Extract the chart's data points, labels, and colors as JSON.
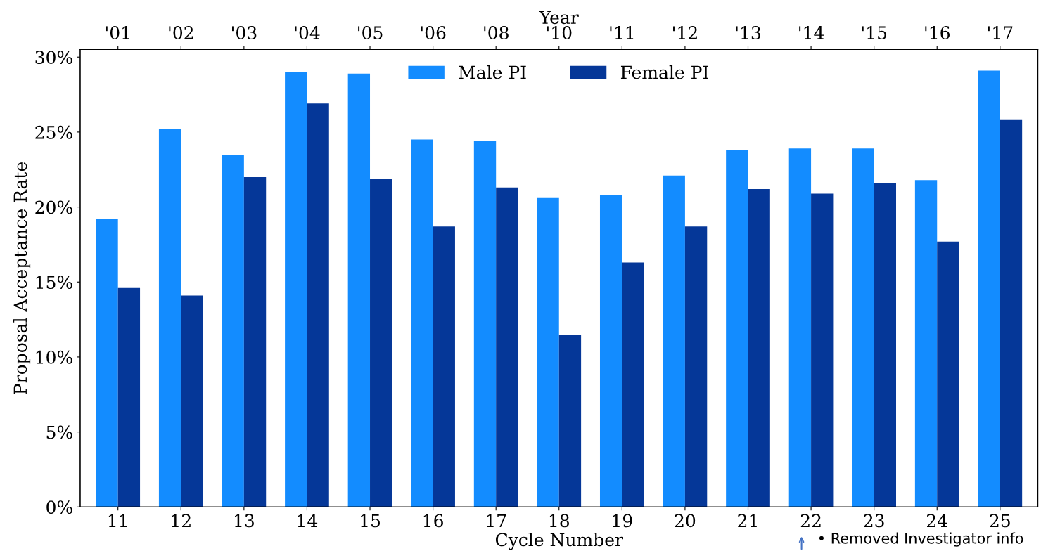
{
  "chart_data": {
    "type": "bar",
    "xlabel": "Cycle Number",
    "ylabel": "Proposal Acceptance Rate",
    "x2label": "Year",
    "categories": [
      "11",
      "12",
      "13",
      "14",
      "15",
      "16",
      "17",
      "18",
      "19",
      "20",
      "21",
      "22",
      "23",
      "24",
      "25"
    ],
    "series": [
      {
        "name": "Male PI",
        "color": "#138cff",
        "values": [
          19.2,
          25.2,
          23.5,
          29.0,
          28.9,
          24.5,
          24.4,
          20.6,
          20.8,
          22.1,
          23.8,
          23.9,
          23.9,
          21.8,
          29.1
        ]
      },
      {
        "name": "Female PI",
        "color": "#053798",
        "values": [
          14.6,
          14.1,
          22.0,
          26.9,
          21.9,
          18.7,
          21.3,
          11.5,
          16.3,
          18.7,
          21.2,
          20.9,
          21.6,
          17.7,
          25.8
        ]
      }
    ],
    "ylim": [
      0,
      30.5
    ],
    "yticks": [
      {
        "value": 0,
        "label": "0%"
      },
      {
        "value": 5,
        "label": "5%"
      },
      {
        "value": 10,
        "label": "10%"
      },
      {
        "value": 15,
        "label": "15%"
      },
      {
        "value": 20,
        "label": "20%"
      },
      {
        "value": 25,
        "label": "25%"
      },
      {
        "value": 30,
        "label": "30%"
      }
    ],
    "legend": "top",
    "grid": false,
    "annotations": [
      "• Removed Investigator info",
      "'01",
      "'02",
      "'03",
      "'04",
      "'05",
      "'06",
      "'08",
      "'10",
      "'11",
      "'12",
      "'13",
      "'14",
      "'15",
      "'16",
      "'17"
    ]
  }
}
